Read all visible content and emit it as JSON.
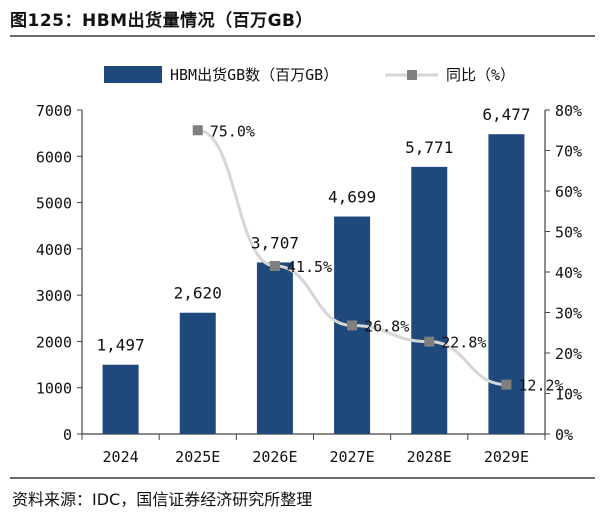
{
  "header": {
    "title": "图125：HBM出货量情况（百万GB）"
  },
  "footer": {
    "source": "资料来源：IDC，国信证券经济研究所整理"
  },
  "chart_data": {
    "type": "bar+line",
    "categories": [
      "2024",
      "2025E",
      "2026E",
      "2027E",
      "2028E",
      "2029E"
    ],
    "series": [
      {
        "name": "HBM出货GB数（百万GB）",
        "type": "bar",
        "axis": "left",
        "values": [
          1497,
          2620,
          3707,
          4699,
          5771,
          6477
        ],
        "labels": [
          "1,497",
          "2,620",
          "3,707",
          "4,699",
          "5,771",
          "6,477"
        ]
      },
      {
        "name": "同比（%）",
        "type": "line",
        "axis": "right",
        "values": [
          null,
          75.0,
          41.5,
          26.8,
          22.8,
          12.2
        ],
        "labels": [
          "",
          "75.0%",
          "41.5%",
          "26.8%",
          "22.8%",
          "12.2%"
        ]
      }
    ],
    "y_left": {
      "min": 0,
      "max": 7000,
      "ticks": [
        "0",
        "1000",
        "2000",
        "3000",
        "4000",
        "5000",
        "6000",
        "7000"
      ]
    },
    "y_right": {
      "min": 0,
      "max": 80,
      "ticks": [
        "0%",
        "10%",
        "20%",
        "30%",
        "40%",
        "50%",
        "60%",
        "70%",
        "80%"
      ]
    },
    "legend": {
      "bar_label": "HBM出货GB数（百万GB）",
      "line_label": "同比（%）",
      "position": "top"
    },
    "colors": {
      "bar": "#1f497d",
      "line": "#d6d6d6",
      "marker": "#7f7f7f",
      "axis": "#444444"
    }
  }
}
